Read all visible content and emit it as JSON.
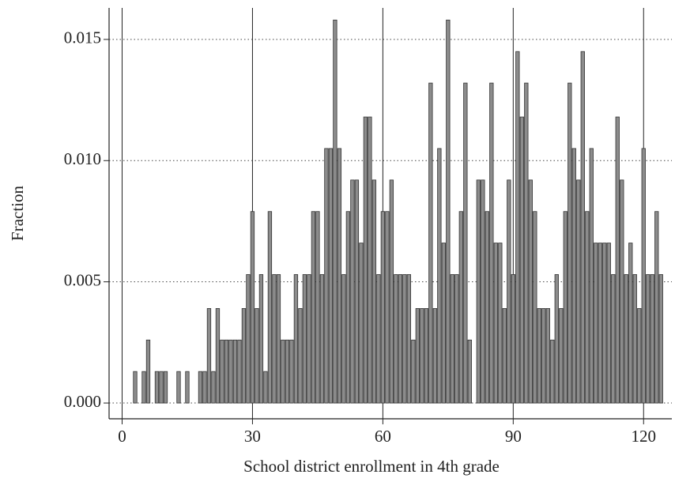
{
  "chart_data": {
    "type": "histogram",
    "xlabel": "School district enrollment in 4th grade",
    "ylabel": "Fraction",
    "bins": [
      0.5,
      1.5,
      2.5,
      3.5,
      4.5,
      5.5,
      6.5,
      7.5,
      8.5,
      9.5,
      10.5,
      11.5,
      12.5,
      13.5,
      14.5,
      15.5,
      16.5,
      17.5,
      18.5,
      19.5,
      20.5,
      21.5,
      22.5,
      23.5,
      24.5,
      25.5,
      26.5,
      27.5,
      28.5,
      29.5,
      30.5,
      31.5,
      32.5,
      33.5,
      34.5,
      35.5,
      36.5,
      37.5,
      38.5,
      39.5,
      40.5,
      41.5,
      42.5,
      43.5,
      44.5,
      45.5,
      46.5,
      47.5,
      48.5,
      49.5,
      50.5,
      51.5,
      52.5,
      53.5,
      54.5,
      55.5,
      56.5,
      57.5,
      58.5,
      59.5,
      60.5,
      61.5,
      62.5,
      63.5,
      64.5,
      65.5,
      66.5,
      67.5,
      68.5,
      69.5,
      70.5,
      71.5,
      72.5,
      73.5,
      74.5,
      75.5,
      76.5,
      77.5,
      78.5,
      79.5,
      80.5,
      81.5,
      82.5,
      83.5,
      84.5,
      85.5,
      86.5,
      87.5,
      88.5,
      89.5,
      90.5,
      91.5,
      92.5,
      93.5,
      94.5,
      95.5,
      96.5,
      97.5,
      98.5,
      99.5,
      100.5,
      101.5,
      102.5,
      103.5,
      104.5,
      105.5,
      106.5,
      107.5,
      108.5,
      109.5,
      110.5,
      111.5,
      112.5,
      113.5,
      114.5,
      115.5,
      116.5,
      117.5,
      118.5,
      119.5,
      120.5,
      121.5,
      122.5,
      123.5,
      124.5
    ],
    "values": [
      0,
      0,
      0.0013,
      0,
      0.0013,
      0.0026,
      0,
      0.0013,
      0.0013,
      0.0013,
      0,
      0,
      0.0013,
      0,
      0.0013,
      0,
      0,
      0.0013,
      0.0013,
      0.0039,
      0.0013,
      0.0039,
      0.0026,
      0.0026,
      0.0026,
      0.0026,
      0.0026,
      0.0039,
      0.0053,
      0.0079,
      0.0039,
      0.0053,
      0.0013,
      0.0079,
      0.0053,
      0.0053,
      0.0026,
      0.0026,
      0.0026,
      0.0053,
      0.0039,
      0.0053,
      0.0053,
      0.0079,
      0.0079,
      0.0053,
      0.0105,
      0.0105,
      0.0158,
      0.0105,
      0.0053,
      0.0079,
      0.0092,
      0.0092,
      0.0066,
      0.0118,
      0.0118,
      0.0092,
      0.0053,
      0.0079,
      0.0079,
      0.0092,
      0.0053,
      0.0053,
      0.0053,
      0.0053,
      0.0026,
      0.0039,
      0.0039,
      0.0039,
      0.0132,
      0.0039,
      0.0105,
      0.0066,
      0.0158,
      0.0053,
      0.0053,
      0.0079,
      0.0132,
      0.0026,
      0,
      0.0092,
      0.0092,
      0.0079,
      0.0132,
      0.0066,
      0.0066,
      0.0039,
      0.0092,
      0.0053,
      0.0145,
      0.0118,
      0.0132,
      0.0092,
      0.0079,
      0.0039,
      0.0039,
      0.0039,
      0.0026,
      0.0053,
      0.0039,
      0.0079,
      0.0132,
      0.0105,
      0.0092,
      0.0145,
      0.0079,
      0.0105,
      0.0066,
      0.0066,
      0.0066,
      0.0066,
      0.0053,
      0.0118,
      0.0092,
      0.0053,
      0.0066,
      0.0053,
      0.0039,
      0.0105,
      0.0053,
      0.0053,
      0.0079,
      0.0053
    ],
    "color": "#8c8c8c",
    "xlim": [
      -3,
      126.5
    ],
    "ylim": [
      -0.00065,
      0.0163
    ],
    "xticks": [
      0,
      30,
      60,
      90,
      120
    ],
    "yticks": [
      {
        "value": 0,
        "label": "0.000"
      },
      {
        "value": 0.005,
        "label": "0.005"
      },
      {
        "value": 0.01,
        "label": "0.010"
      },
      {
        "value": 0.015,
        "label": "0.015"
      }
    ],
    "grid": true
  }
}
